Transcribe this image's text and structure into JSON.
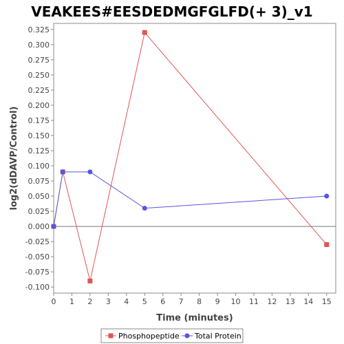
{
  "chart_data": {
    "type": "line",
    "title": "VEAKEES#EESDEDMGFGLFD(+ 3)_v1",
    "xlabel": "Time (minutes)",
    "ylabel": "log2(dDAVP/Control)",
    "xlim": [
      0,
      15.5
    ],
    "ylim": [
      -0.11,
      0.335
    ],
    "x_ticks": [
      "0",
      "1",
      "2",
      "3",
      "4",
      "5",
      "6",
      "7",
      "8",
      "9",
      "10",
      "11",
      "12",
      "13",
      "14",
      "15"
    ],
    "y_ticks": [
      "-0.100",
      "-0.075",
      "-0.050",
      "-0.025",
      "0.000",
      "0.025",
      "0.050",
      "0.075",
      "0.100",
      "0.125",
      "0.150",
      "0.175",
      "0.200",
      "0.225",
      "0.250",
      "0.275",
      "0.300",
      "0.325"
    ],
    "grid": false,
    "zero_line": true,
    "legend_position": "bottom",
    "series": [
      {
        "name": "Phosphopeptide",
        "color": "#e05555",
        "marker": "square",
        "x": [
          0,
          0.5,
          2,
          5,
          15
        ],
        "y": [
          0.0,
          0.09,
          -0.09,
          0.32,
          -0.03
        ]
      },
      {
        "name": "Total Protein",
        "color": "#5555e0",
        "marker": "circle",
        "x": [
          0,
          0.5,
          2,
          5,
          15
        ],
        "y": [
          0.0,
          0.09,
          0.09,
          0.03,
          0.05
        ]
      }
    ]
  }
}
